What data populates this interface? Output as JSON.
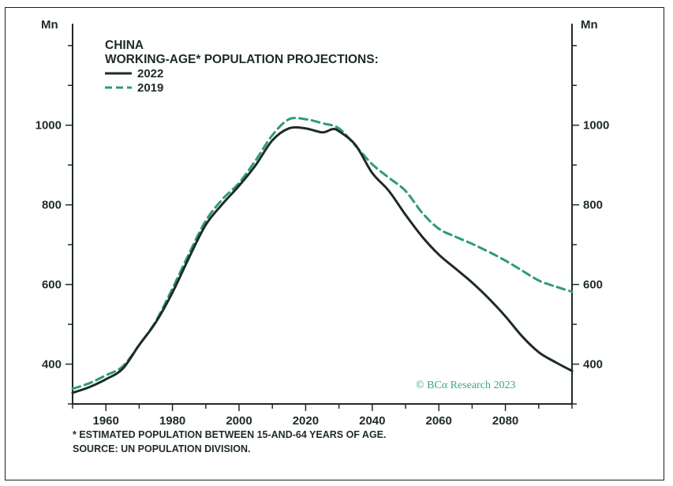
{
  "chart_data": {
    "type": "line",
    "title": "CHINA",
    "subtitle": "WORKING-AGE* POPULATION PROJECTIONS:",
    "ylabel_left": "Mn",
    "ylabel_right": "Mn",
    "xlim": [
      1950,
      2100
    ],
    "ylim": [
      300,
      1255
    ],
    "x_ticks": [
      1960,
      1980,
      2000,
      2020,
      2040,
      2060,
      2080
    ],
    "y_ticks": [
      400,
      600,
      800,
      1000
    ],
    "x_tick_labels": [
      "1960",
      "1980",
      "2000",
      "2020",
      "2040",
      "2060",
      "2080"
    ],
    "y_tick_labels": [
      "400",
      "600",
      "800",
      "1000"
    ],
    "series": [
      {
        "name": "2022",
        "style": "solid",
        "color": "#1f2a2a",
        "x": [
          1950,
          1955,
          1960,
          1965,
          1970,
          1975,
          1980,
          1985,
          1990,
          1995,
          2000,
          2005,
          2010,
          2015,
          2020,
          2025,
          2028,
          2030,
          2035,
          2040,
          2045,
          2050,
          2055,
          2060,
          2065,
          2070,
          2075,
          2080,
          2085,
          2090,
          2095,
          2100
        ],
        "values": [
          328,
          342,
          362,
          388,
          448,
          505,
          580,
          668,
          750,
          802,
          848,
          900,
          962,
          992,
          992,
          982,
          990,
          985,
          950,
          880,
          835,
          775,
          720,
          675,
          640,
          605,
          565,
          520,
          470,
          430,
          405,
          383
        ]
      },
      {
        "name": "2019",
        "style": "dashed",
        "color": "#2f9a7a",
        "x": [
          1950,
          1955,
          1960,
          1965,
          1970,
          1975,
          1980,
          1985,
          1990,
          1995,
          2000,
          2005,
          2010,
          2015,
          2020,
          2025,
          2030,
          2035,
          2040,
          2045,
          2050,
          2055,
          2060,
          2065,
          2070,
          2075,
          2080,
          2085,
          2090,
          2095,
          2100
        ],
        "values": [
          338,
          352,
          372,
          394,
          448,
          508,
          590,
          678,
          760,
          814,
          855,
          912,
          975,
          1015,
          1015,
          1005,
          992,
          948,
          902,
          868,
          835,
          780,
          740,
          720,
          702,
          682,
          660,
          635,
          610,
          595,
          582
        ]
      }
    ],
    "legend": [
      "2022",
      "2019"
    ],
    "legend_position": "top-left",
    "footnote": "* ESTIMATED POPULATION BETWEEN 15-AND-64 YEARS OF AGE.",
    "source": "SOURCE: UN POPULATION DIVISION.",
    "copyright": "© BCA Research 2023",
    "copyright_logo": "BCα"
  }
}
